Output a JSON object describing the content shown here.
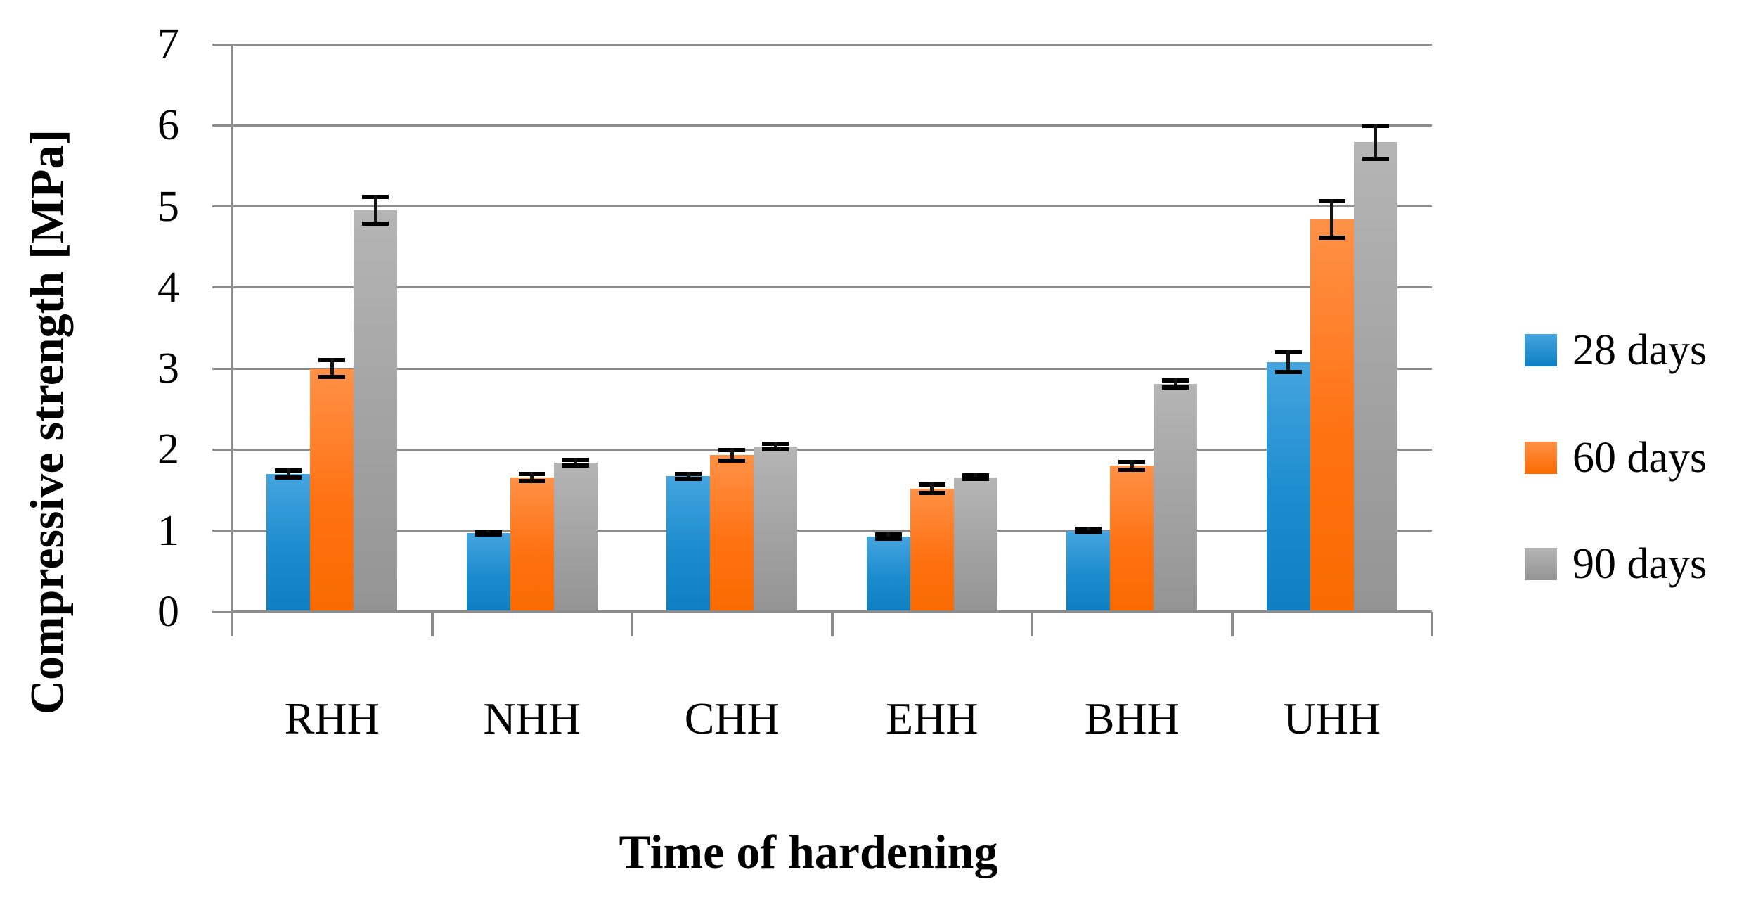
{
  "chart_data": {
    "type": "bar",
    "title": "",
    "xlabel": "Time of hardening",
    "ylabel": "Compressive strength [MPa]",
    "categories": [
      "RHH",
      "NHH",
      "CHH",
      "EHH",
      "BHH",
      "UHH"
    ],
    "series": [
      {
        "name": "28 days",
        "color_top": "#45A5DF",
        "color_mid": "#1B8CCE",
        "color_bottom": "#0D7FC2",
        "values": [
          1.7,
          0.97,
          1.67,
          0.93,
          1.0,
          3.08
        ],
        "errors": [
          0.07,
          0.04,
          0.06,
          0.05,
          0.05,
          0.15
        ]
      },
      {
        "name": "60 days",
        "color_top": "#FF9147",
        "color_mid": "#FF7212",
        "color_bottom": "#F96A00",
        "values": [
          3.0,
          1.66,
          1.93,
          1.52,
          1.8,
          4.84
        ],
        "errors": [
          0.13,
          0.07,
          0.09,
          0.08,
          0.07,
          0.25
        ]
      },
      {
        "name": "90 days",
        "color_top": "#B5B5B5",
        "color_mid": "#A2A2A2",
        "color_bottom": "#949494",
        "values": [
          4.95,
          1.84,
          2.04,
          1.66,
          2.81,
          5.79
        ],
        "errors": [
          0.19,
          0.06,
          0.06,
          0.05,
          0.07,
          0.23
        ]
      }
    ],
    "ylim": [
      0,
      7
    ],
    "yticks": [
      "0",
      "1",
      "2",
      "3",
      "4",
      "5",
      "6",
      "7"
    ],
    "grid": true,
    "error_bars": true,
    "legend_position": "right",
    "axis_color": "#8C8C8C"
  }
}
